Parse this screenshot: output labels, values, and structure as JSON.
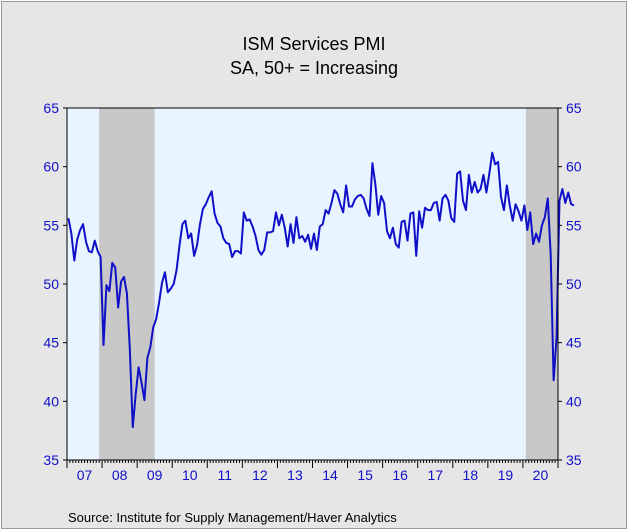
{
  "chart_data": {
    "type": "line",
    "title": "ISM Services PMI",
    "subtitle": "SA, 50+ = Increasing",
    "source": "Source:   Institute for Supply Management/Haver Analytics",
    "ylim": [
      35,
      65
    ],
    "y_ticks": [
      35,
      40,
      45,
      50,
      55,
      60,
      65
    ],
    "y_axis_sides": "both",
    "x_start": "2007-01",
    "x_end": "2020-12",
    "x_tick_labels": [
      "07",
      "08",
      "09",
      "10",
      "11",
      "12",
      "13",
      "14",
      "15",
      "16",
      "17",
      "18",
      "19",
      "20"
    ],
    "recession_shading": [
      {
        "start": "2007-12",
        "end": "2009-06"
      },
      {
        "start": "2020-02",
        "end": "2020-12"
      }
    ],
    "colors": {
      "line": "#1010c8",
      "plot_bg": "#e8f4ff",
      "recession": "#c8c8c8",
      "axis_text": "#1010c8",
      "frame_bg": "#e6e6e6"
    },
    "grid": false,
    "series": [
      {
        "start": "2007-01",
        "values": [
          55.6,
          54.3,
          52.0,
          53.8,
          54.6,
          55.1,
          53.6,
          52.8,
          52.7,
          53.7,
          52.8,
          52.3,
          44.8,
          49.9,
          49.4,
          51.8,
          51.4,
          48.0,
          50.2,
          50.6,
          49.2,
          44.4,
          37.8,
          40.6,
          42.9,
          41.6,
          40.1,
          43.7,
          44.6,
          46.3,
          47.0,
          48.4,
          50.1,
          51.0,
          49.3,
          49.6,
          50.0,
          51.2,
          53.3,
          55.1,
          55.4,
          53.9,
          54.3,
          52.4,
          53.3,
          55.1,
          56.4,
          56.8,
          57.4,
          57.9,
          56.0,
          55.2,
          54.9,
          53.9,
          53.5,
          53.4,
          52.3,
          52.8,
          52.8,
          52.6,
          56.1,
          55.4,
          55.5,
          54.9,
          54.1,
          52.9,
          52.5,
          52.9,
          54.4,
          54.4,
          54.5,
          56.1,
          55.0,
          55.9,
          54.8,
          53.2,
          55.1,
          53.5,
          55.7,
          53.9,
          54.1,
          53.6,
          54.2,
          53.0,
          54.3,
          52.9,
          54.9,
          55.1,
          56.3,
          56.0,
          56.9,
          58.0,
          57.7,
          56.8,
          56.1,
          58.4,
          56.6,
          56.6,
          57.2,
          57.5,
          57.6,
          57.3,
          56.4,
          55.8,
          60.3,
          58.5,
          55.9,
          57.5,
          56.9,
          54.5,
          53.9,
          54.8,
          53.4,
          53.1,
          55.3,
          55.4,
          53.7,
          56.0,
          56.1,
          52.4,
          56.2,
          54.8,
          56.5,
          56.3,
          56.3,
          56.9,
          57.0,
          55.4,
          57.3,
          57.6,
          57.1,
          55.6,
          55.3,
          59.4,
          59.6,
          57.1,
          56.3,
          59.3,
          57.8,
          58.7,
          57.8,
          58.1,
          59.3,
          57.8,
          59.4,
          61.2,
          60.2,
          60.4,
          57.4,
          56.3,
          58.4,
          56.7,
          55.4,
          56.8,
          56.2,
          55.4,
          56.7,
          54.6,
          56.1,
          53.4,
          54.3,
          53.6,
          55.0,
          55.7,
          57.3,
          52.5,
          41.8,
          45.4,
          57.1,
          58.1,
          56.9,
          57.8,
          56.8,
          56.7
        ]
      }
    ]
  }
}
